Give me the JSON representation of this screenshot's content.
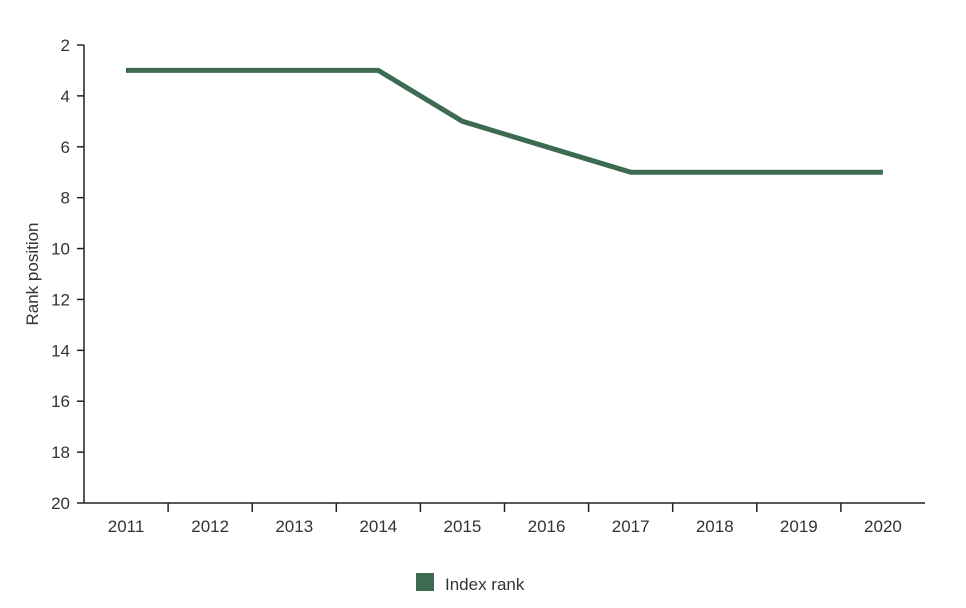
{
  "chart_data": {
    "type": "line",
    "title": "",
    "xlabel": "",
    "ylabel": "Rank position",
    "y_inverted": true,
    "ylim": [
      2,
      20
    ],
    "yticks": [
      "2",
      "4",
      "6",
      "8",
      "10",
      "12",
      "14",
      "16",
      "18",
      "20"
    ],
    "categories": [
      "2011",
      "2012",
      "2013",
      "2014",
      "2015",
      "2016",
      "2017",
      "2018",
      "2019",
      "2020"
    ],
    "grid": false,
    "legend_position": "bottom-center",
    "series": [
      {
        "name": "Index rank",
        "color": "#3d6b52",
        "values": [
          3,
          3,
          3,
          3,
          5,
          6,
          7,
          7,
          7,
          7
        ]
      }
    ]
  }
}
